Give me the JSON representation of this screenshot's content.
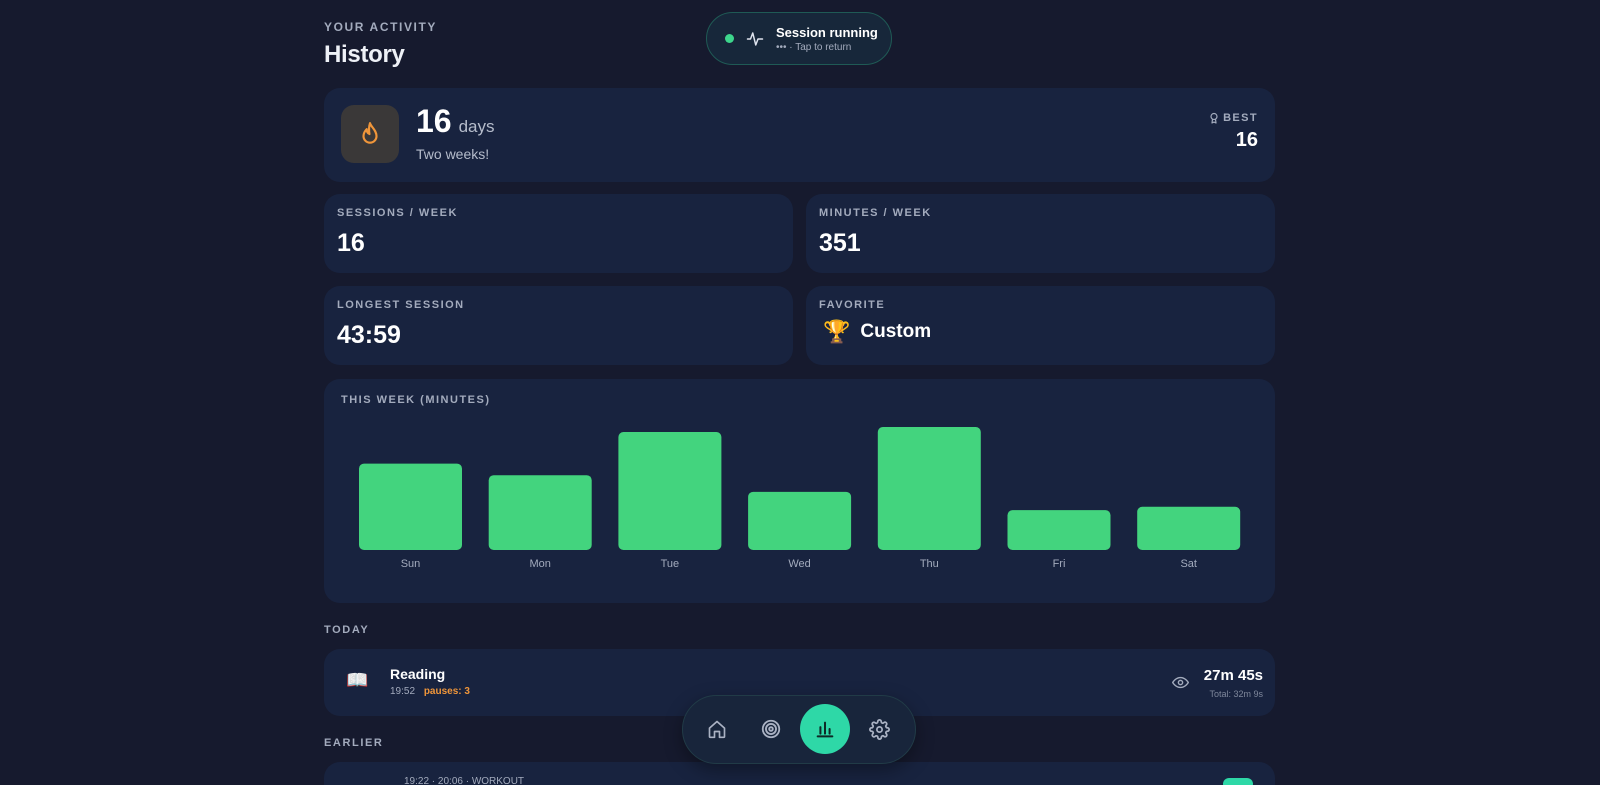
{
  "header": {
    "eyebrow": "YOUR ACTIVITY",
    "title": "History"
  },
  "session_pill": {
    "title": "Session running",
    "subtitle": "••• · Tap to return",
    "icon": "pulse-icon",
    "dot_color": "#3dd68c"
  },
  "streak": {
    "count": "16",
    "unit": "days",
    "subtitle": "Two weeks!",
    "icon": "flame-icon",
    "best_label": "BEST",
    "best_value": "16",
    "best_icon": "trophy-outline-icon"
  },
  "stats": {
    "sessions_week": {
      "label": "SESSIONS / WEEK",
      "value": "16"
    },
    "minutes_week": {
      "label": "MINUTES / WEEK",
      "value": "351"
    },
    "longest_session": {
      "label": "LONGEST SESSION",
      "value": "43:59"
    },
    "favorite": {
      "label": "FAVORITE",
      "emoji": "🏆",
      "value": "Custom"
    }
  },
  "chart_data": {
    "type": "bar",
    "title": "THIS WEEK (MINUTES)",
    "categories": [
      "Sun",
      "Mon",
      "Tue",
      "Wed",
      "Thu",
      "Fri",
      "Sat"
    ],
    "values": [
      52,
      45,
      71,
      35,
      74,
      24,
      26
    ],
    "ylim": [
      0,
      74
    ],
    "bar_color": "#43d47e",
    "grid": false,
    "legend": "none"
  },
  "sections": {
    "today": "TODAY",
    "earlier": "EARLIER"
  },
  "today_activities": [
    {
      "icon": "📖",
      "name": "Reading",
      "time": "19:52",
      "pauses": "pauses: 3",
      "duration": "27m 45s",
      "total": "Total: 32m 9s",
      "status_icon": "eye-icon"
    }
  ],
  "earlier_activities": [
    {
      "summary": "19:22 · 20:06 · WORKOUT"
    }
  ],
  "nav": [
    {
      "name": "home",
      "icon": "home-icon",
      "active": false
    },
    {
      "name": "focus",
      "icon": "target-icon",
      "active": false
    },
    {
      "name": "history",
      "icon": "bar-chart-icon",
      "active": true
    },
    {
      "name": "settings",
      "icon": "gear-icon",
      "active": false
    }
  ],
  "colors": {
    "background": "#161a2e",
    "card": "#18233f",
    "accent": "#2ed8a7",
    "bar": "#43d47e",
    "warning": "#f0963a"
  }
}
